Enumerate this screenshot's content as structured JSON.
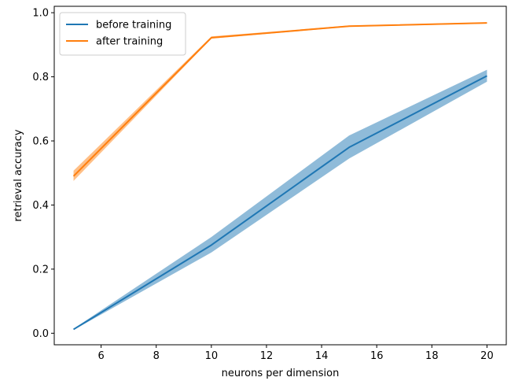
{
  "chart_data": {
    "type": "line",
    "title": "",
    "xlabel": "neurons per dimension",
    "ylabel": "retrieval accuracy",
    "xlim": [
      4.3,
      20.7
    ],
    "ylim": [
      -0.036,
      1.02
    ],
    "xticks": [
      6,
      8,
      10,
      12,
      14,
      16,
      18,
      20
    ],
    "yticks": [
      0.0,
      0.2,
      0.4,
      0.6,
      0.8,
      1.0
    ],
    "xtick_labels": [
      "6",
      "8",
      "10",
      "12",
      "14",
      "16",
      "18",
      "20"
    ],
    "ytick_labels": [
      "0.0",
      "0.2",
      "0.4",
      "0.6",
      "0.8",
      "1.0"
    ],
    "grid": false,
    "legend_position": "top-left",
    "x": [
      5,
      10,
      15,
      20
    ],
    "series": [
      {
        "name": "before training",
        "color": "#1f77b4",
        "values": [
          0.012,
          0.275,
          0.58,
          0.803
        ],
        "lower": [
          0.01,
          0.252,
          0.545,
          0.785
        ],
        "upper": [
          0.014,
          0.3,
          0.617,
          0.822
        ]
      },
      {
        "name": "after training",
        "color": "#ff7f0e",
        "values": [
          0.49,
          0.922,
          0.958,
          0.968
        ],
        "lower": [
          0.475,
          0.919,
          0.956,
          0.966
        ],
        "upper": [
          0.507,
          0.926,
          0.96,
          0.97
        ]
      }
    ]
  }
}
